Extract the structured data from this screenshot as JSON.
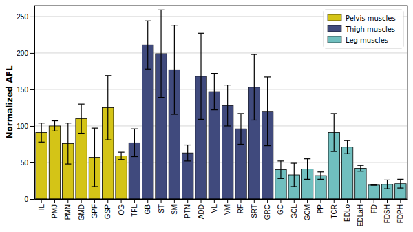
{
  "chart_data": {
    "type": "bar",
    "y_label": "Normalized AFL",
    "categories": [
      "IL",
      "PMJ",
      "PMN",
      "GMD",
      "GPF",
      "GSP",
      "OG",
      "TFL",
      "GB",
      "ST",
      "SM",
      "PTN",
      "ADD",
      "VL",
      "VM",
      "RF",
      "SRT",
      "GRC",
      "GC",
      "GCL",
      "GCM",
      "PP",
      "TCR",
      "EDLo",
      "EDLaH",
      "FD",
      "FDSH",
      "FDPH"
    ],
    "series": [
      {
        "name": "Pelvis muscles",
        "color": "#d4c417",
        "values": [
          91,
          100,
          76,
          110,
          57,
          125,
          59,
          null,
          null,
          null,
          null,
          null,
          null,
          null,
          null,
          null,
          null,
          null,
          null,
          null,
          null,
          null,
          null,
          null,
          null,
          null,
          null,
          null
        ],
        "errors": [
          13,
          7,
          28,
          20,
          40,
          44,
          5,
          null,
          null,
          null,
          null,
          null,
          null,
          null,
          null,
          null,
          null,
          null,
          null,
          null,
          null,
          null,
          null,
          null,
          null,
          null,
          null,
          null
        ]
      },
      {
        "name": "Thigh muscles",
        "color": "#404a7d",
        "values": [
          null,
          null,
          null,
          null,
          null,
          null,
          null,
          77,
          211,
          199,
          177,
          63,
          168,
          147,
          128,
          96,
          153,
          120,
          null,
          null,
          null,
          null,
          null,
          null,
          null,
          null,
          null,
          null
        ],
        "errors": [
          null,
          null,
          null,
          null,
          null,
          null,
          null,
          19,
          33,
          60,
          61,
          11,
          59,
          25,
          28,
          21,
          45,
          47,
          null,
          null,
          null,
          null,
          null,
          null,
          null,
          null,
          null,
          null
        ]
      },
      {
        "name": "Leg muscles",
        "color": "#70bfbf",
        "values": [
          null,
          null,
          null,
          null,
          null,
          null,
          null,
          null,
          null,
          null,
          null,
          null,
          null,
          null,
          null,
          null,
          null,
          null,
          40,
          33,
          41,
          32,
          91,
          71,
          42,
          19,
          20,
          21
        ],
        "errors": [
          null,
          null,
          null,
          null,
          null,
          null,
          null,
          null,
          null,
          null,
          null,
          null,
          null,
          null,
          null,
          null,
          null,
          null,
          12,
          16,
          14,
          5,
          26,
          9,
          4,
          0,
          6,
          6
        ]
      }
    ],
    "ylim": [
      0,
      265
    ],
    "yticks": [
      0,
      50,
      100,
      150,
      200,
      250
    ],
    "grid": true,
    "legend": "upper right"
  }
}
